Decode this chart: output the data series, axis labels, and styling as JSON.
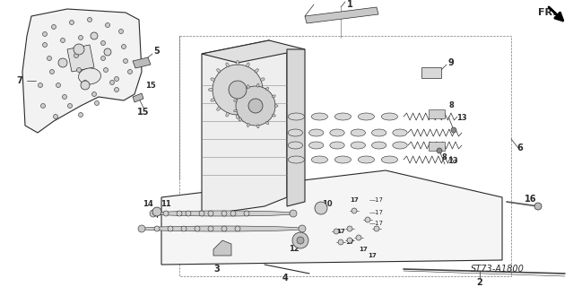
{
  "bg": "#ffffff",
  "col": "#2a2a2a",
  "lw_thin": 0.5,
  "lw_med": 0.8,
  "lw_thick": 1.2,
  "watermark": "ST73-A1800",
  "fr_label": "FR.",
  "fig_w": 6.39,
  "fig_h": 3.2,
  "dpi": 100
}
